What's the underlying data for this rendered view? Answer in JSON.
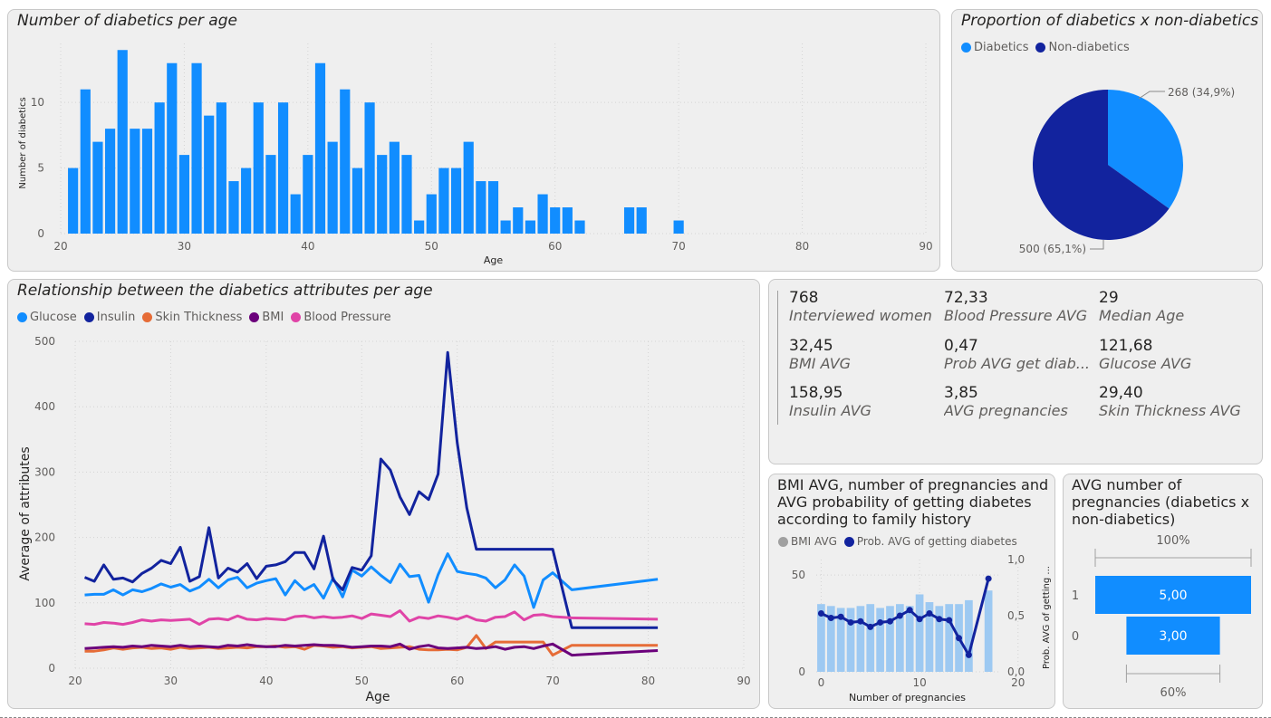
{
  "colors": {
    "diabetics": "#118DFF",
    "nondiabetics": "#12239E",
    "glucose": "#118DFF",
    "insulin": "#12239E",
    "skin": "#E66C37",
    "bmi": "#6B007B",
    "bp": "#E044A7",
    "bmi_bar": "#9dc9f2",
    "gray": "#a0a0a0"
  },
  "panels": {
    "age_hist": {
      "title": "Number of diabetics per age"
    },
    "pie": {
      "title": "Proportion of diabetics x non-diabetics"
    },
    "lines": {
      "title": "Relationship between the diabetics attributes per age"
    },
    "combo": {
      "title": "BMI AVG, number of pregnancies and AVG probability of getting diabetes according to family history"
    },
    "funnel": {
      "title": "AVG number of pregnancies (diabetics x non-diabetics)"
    }
  },
  "kpis": [
    {
      "value": "768",
      "label": "Interviewed women"
    },
    {
      "value": "72,33",
      "label": "Blood Pressure AVG"
    },
    {
      "value": "29",
      "label": "Median Age"
    },
    {
      "value": "32,45",
      "label": "BMI AVG"
    },
    {
      "value": "0,47",
      "label": "Prob AVG get diab..."
    },
    {
      "value": "121,68",
      "label": "Glucose AVG"
    },
    {
      "value": "158,95",
      "label": "Insulin AVG"
    },
    {
      "value": "3,85",
      "label": "AVG pregnancies"
    },
    {
      "value": "29,40",
      "label": "Skin Thickness AVG"
    }
  ],
  "chart_data": [
    {
      "id": "age_hist",
      "type": "bar",
      "xlabel": "Age",
      "ylabel": "Number of diabetics",
      "xlim": [
        20,
        90
      ],
      "ylim": [
        0,
        14.5
      ],
      "x_ticks": [
        "20",
        "30",
        "40",
        "50",
        "60",
        "70",
        "80",
        "90"
      ],
      "y_ticks": [
        "0",
        "5",
        "10"
      ],
      "x": [
        21,
        22,
        23,
        24,
        25,
        26,
        27,
        28,
        29,
        30,
        31,
        32,
        33,
        34,
        35,
        36,
        37,
        38,
        39,
        40,
        41,
        42,
        43,
        44,
        45,
        46,
        47,
        48,
        49,
        50,
        51,
        52,
        53,
        54,
        55,
        56,
        57,
        58,
        59,
        60,
        61,
        62,
        66,
        67,
        70
      ],
      "values": [
        5,
        11,
        7,
        8,
        14,
        8,
        8,
        10,
        13,
        6,
        13,
        9,
        10,
        4,
        5,
        10,
        6,
        10,
        3,
        6,
        13,
        7,
        11,
        5,
        10,
        6,
        7,
        6,
        1,
        3,
        5,
        5,
        7,
        4,
        4,
        1,
        2,
        1,
        3,
        2,
        2,
        1,
        2,
        2,
        1
      ]
    },
    {
      "id": "pie",
      "type": "pie",
      "legend": [
        "Diabetics",
        "Non-diabetics"
      ],
      "labels": [
        "Diabetics",
        "Non-diabetics"
      ],
      "values": [
        268,
        500
      ],
      "data_labels": [
        "268 (34,9%)",
        "500 (65,1%)"
      ]
    },
    {
      "id": "lines",
      "type": "line",
      "xlabel": "Age",
      "ylabel": "Average of attributes",
      "xlim": [
        20,
        90
      ],
      "ylim": [
        0,
        500
      ],
      "x_ticks": [
        "20",
        "30",
        "40",
        "50",
        "60",
        "70",
        "80",
        "90"
      ],
      "y_ticks": [
        "0",
        "100",
        "200",
        "300",
        "400",
        "500"
      ],
      "x": [
        21,
        22,
        23,
        24,
        25,
        26,
        27,
        28,
        29,
        30,
        31,
        32,
        33,
        34,
        35,
        36,
        37,
        38,
        39,
        40,
        41,
        42,
        43,
        44,
        45,
        46,
        47,
        48,
        49,
        50,
        51,
        52,
        53,
        54,
        55,
        56,
        57,
        58,
        59,
        60,
        61,
        62,
        63,
        64,
        65,
        66,
        67,
        68,
        69,
        70,
        72,
        81
      ],
      "series": [
        {
          "name": "Glucose",
          "key": "glucose",
          "values": [
            112,
            113,
            113,
            120,
            112,
            120,
            117,
            122,
            129,
            124,
            128,
            118,
            124,
            136,
            123,
            135,
            139,
            123,
            130,
            134,
            137,
            112,
            134,
            120,
            128,
            107,
            138,
            109,
            150,
            141,
            155,
            142,
            131,
            159,
            140,
            142,
            101,
            143,
            175,
            148,
            145,
            143,
            138,
            123,
            135,
            158,
            141,
            93,
            135,
            146,
            120,
            136
          ]
        },
        {
          "name": "Insulin",
          "key": "insulin",
          "values": [
            139,
            133,
            158,
            136,
            138,
            132,
            145,
            153,
            165,
            160,
            185,
            133,
            140,
            215,
            138,
            153,
            147,
            160,
            137,
            156,
            158,
            163,
            177,
            177,
            152,
            202,
            135,
            120,
            154,
            150,
            172,
            320,
            303,
            262,
            235,
            270,
            258,
            297,
            483,
            345,
            245,
            182,
            182,
            182,
            182,
            182,
            182,
            182,
            182,
            182,
            62,
            62
          ]
        },
        {
          "name": "Skin Thickness",
          "key": "skin",
          "values": [
            26,
            26,
            28,
            31,
            29,
            31,
            32,
            30,
            31,
            29,
            32,
            30,
            31,
            32,
            30,
            31,
            32,
            31,
            33,
            33,
            34,
            32,
            33,
            29,
            35,
            34,
            32,
            33,
            31,
            32,
            33,
            30,
            31,
            32,
            33,
            29,
            28,
            28,
            29,
            28,
            32,
            50,
            30,
            40,
            40,
            40,
            40,
            40,
            40,
            20,
            35,
            35
          ]
        },
        {
          "name": "BMI",
          "key": "bmi",
          "values": [
            30,
            31,
            32,
            33,
            32,
            34,
            33,
            35,
            34,
            33,
            35,
            33,
            34,
            33,
            32,
            35,
            34,
            36,
            34,
            33,
            33,
            35,
            34,
            35,
            36,
            35,
            35,
            34,
            32,
            33,
            34,
            34,
            33,
            37,
            29,
            33,
            35,
            31,
            30,
            31,
            32,
            30,
            31,
            33,
            29,
            32,
            33,
            30,
            34,
            37,
            20,
            27
          ]
        },
        {
          "name": "Blood Pressure",
          "key": "bp",
          "values": [
            68,
            67,
            70,
            69,
            67,
            70,
            74,
            72,
            74,
            73,
            74,
            75,
            67,
            75,
            76,
            74,
            80,
            75,
            74,
            76,
            75,
            74,
            79,
            80,
            77,
            79,
            77,
            78,
            80,
            76,
            83,
            81,
            79,
            88,
            72,
            78,
            76,
            80,
            78,
            75,
            80,
            74,
            72,
            78,
            79,
            86,
            74,
            81,
            82,
            79,
            77,
            75
          ]
        }
      ]
    },
    {
      "id": "combo",
      "type": "bar",
      "legend": [
        "BMI AVG",
        "Prob. AVG of getting diabetes"
      ],
      "xlabel": "Number of pregnancies",
      "ylabel_right": "Prob. AVG of getting ...",
      "xlim": [
        -0.5,
        18
      ],
      "ylim_left": [
        0,
        58
      ],
      "ylim_right": [
        0,
        1.0
      ],
      "x_ticks": [
        "0",
        "10",
        "20"
      ],
      "y_ticks_left": [
        "0",
        "50"
      ],
      "y_ticks_right": [
        "0,0",
        "0,5",
        "1,0"
      ],
      "x": [
        0,
        1,
        2,
        3,
        4,
        5,
        6,
        7,
        8,
        9,
        10,
        11,
        12,
        13,
        14,
        15,
        17
      ],
      "series": [
        {
          "name": "BMI AVG",
          "values": [
            35,
            34,
            33,
            33,
            34,
            35,
            33,
            34,
            35,
            34,
            40,
            36,
            34,
            35,
            35,
            37,
            42
          ]
        },
        {
          "name": "Prob. AVG of getting diabetes",
          "values": [
            0.52,
            0.48,
            0.49,
            0.44,
            0.45,
            0.4,
            0.44,
            0.45,
            0.5,
            0.55,
            0.47,
            0.52,
            0.47,
            0.46,
            0.3,
            0.15,
            0.83
          ]
        }
      ]
    },
    {
      "id": "funnel",
      "type": "bar",
      "categories": [
        "1",
        "0"
      ],
      "values": [
        5.0,
        3.0
      ],
      "data_labels": [
        "5,00",
        "3,00"
      ],
      "top_label": "100%",
      "bottom_label": "60%"
    }
  ]
}
